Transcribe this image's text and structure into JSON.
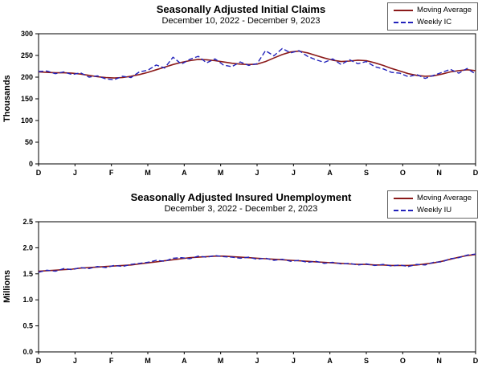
{
  "page": {
    "background": "#ffffff"
  },
  "chart_data": [
    {
      "type": "line",
      "title": "Seasonally Adjusted Initial Claims",
      "subtitle": "December 10, 2022 - December 9, 2023",
      "ylabel": "Thousands",
      "ylim": [
        0,
        300
      ],
      "ytick_values": [
        0,
        50,
        100,
        150,
        200,
        250,
        300
      ],
      "ytick_labels": [
        "0",
        "50",
        "100",
        "150",
        "200",
        "250",
        "300"
      ],
      "categories": [
        "D",
        "J",
        "F",
        "M",
        "A",
        "M",
        "J",
        "J",
        "A",
        "S",
        "O",
        "N",
        "D"
      ],
      "grid": false,
      "legend_position": "top-right",
      "legend": [
        {
          "label": "Moving Average",
          "color": "#8B1A1A",
          "dash": ""
        },
        {
          "label": "Weekly IC",
          "color": "#2222BB",
          "dash": "5,3"
        }
      ],
      "series": [
        {
          "name": "Moving Average",
          "color": "#8B1A1A",
          "dash": "",
          "width": 1.6,
          "values": [
            212,
            211,
            210,
            210,
            209,
            207,
            204,
            201,
            199,
            198,
            199,
            202,
            206,
            211,
            217,
            223,
            229,
            234,
            238,
            241,
            240,
            238,
            235,
            232,
            230,
            229,
            230,
            236,
            244,
            252,
            258,
            260,
            256,
            250,
            244,
            239,
            236,
            237,
            239,
            238,
            233,
            227,
            220,
            214,
            208,
            204,
            202,
            203,
            207,
            212,
            215,
            217,
            215
          ]
        },
        {
          "name": "Weekly IC",
          "color": "#2222BB",
          "dash": "6,3",
          "width": 1.4,
          "values": [
            213,
            214,
            208,
            212,
            206,
            210,
            200,
            203,
            196,
            194,
            202,
            199,
            212,
            216,
            228,
            221,
            246,
            230,
            241,
            248,
            233,
            242,
            228,
            224,
            235,
            227,
            231,
            261,
            249,
            266,
            256,
            261,
            248,
            240,
            234,
            242,
            229,
            240,
            231,
            236,
            224,
            219,
            211,
            209,
            201,
            206,
            197,
            204,
            211,
            218,
            209,
            220,
            207
          ]
        }
      ]
    },
    {
      "type": "line",
      "title": "Seasonally Adjusted Insured Unemployment",
      "subtitle": "December 3, 2022 - December 2, 2023",
      "ylabel": "Millions",
      "ylim": [
        0,
        2.5
      ],
      "ytick_values": [
        0,
        0.5,
        1,
        1.5,
        2,
        2.5
      ],
      "ytick_labels": [
        "0.0",
        "0.5",
        "1.0",
        "1.5",
        "2.0",
        "2.5"
      ],
      "categories": [
        "D",
        "J",
        "F",
        "M",
        "A",
        "M",
        "J",
        "J",
        "A",
        "S",
        "O",
        "N",
        "D"
      ],
      "grid": false,
      "legend_position": "top-right",
      "legend": [
        {
          "label": "Moving Average",
          "color": "#8B1A1A",
          "dash": ""
        },
        {
          "label": "Weekly IU",
          "color": "#2222BB",
          "dash": "5,3"
        }
      ],
      "series": [
        {
          "name": "Moving Average",
          "color": "#8B1A1A",
          "dash": "",
          "width": 1.6,
          "values": [
            1.55,
            1.56,
            1.57,
            1.58,
            1.59,
            1.61,
            1.62,
            1.63,
            1.64,
            1.65,
            1.66,
            1.67,
            1.69,
            1.71,
            1.73,
            1.75,
            1.77,
            1.79,
            1.81,
            1.82,
            1.83,
            1.84,
            1.84,
            1.83,
            1.82,
            1.81,
            1.8,
            1.79,
            1.78,
            1.77,
            1.76,
            1.75,
            1.74,
            1.73,
            1.72,
            1.71,
            1.7,
            1.69,
            1.68,
            1.68,
            1.67,
            1.67,
            1.66,
            1.66,
            1.66,
            1.67,
            1.69,
            1.71,
            1.74,
            1.78,
            1.82,
            1.85,
            1.87
          ]
        },
        {
          "name": "Weekly IU",
          "color": "#2222BB",
          "dash": "6,3",
          "width": 1.4,
          "values": [
            1.53,
            1.57,
            1.55,
            1.6,
            1.58,
            1.62,
            1.6,
            1.64,
            1.62,
            1.66,
            1.64,
            1.68,
            1.7,
            1.72,
            1.76,
            1.74,
            1.8,
            1.81,
            1.79,
            1.84,
            1.82,
            1.85,
            1.83,
            1.82,
            1.8,
            1.82,
            1.78,
            1.8,
            1.76,
            1.78,
            1.74,
            1.76,
            1.72,
            1.74,
            1.7,
            1.72,
            1.69,
            1.7,
            1.67,
            1.69,
            1.66,
            1.68,
            1.65,
            1.67,
            1.64,
            1.68,
            1.67,
            1.72,
            1.73,
            1.79,
            1.81,
            1.86,
            1.88
          ]
        }
      ]
    }
  ]
}
